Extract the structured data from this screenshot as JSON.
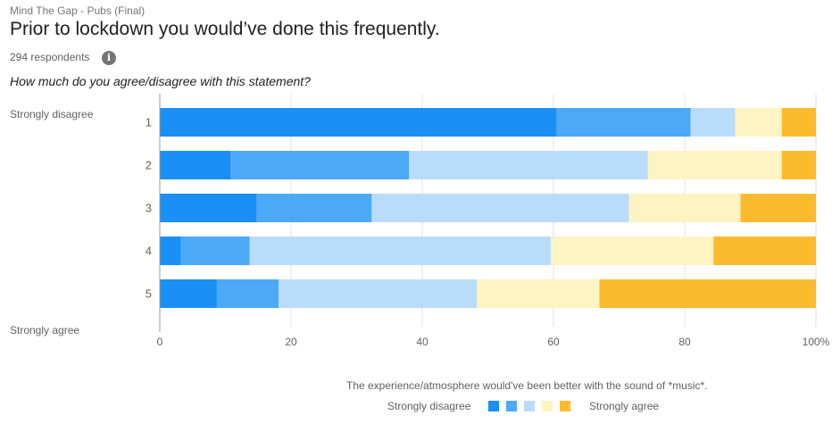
{
  "header": {
    "survey_name": "Mind The Gap - Pubs (Final)",
    "title": "Prior to lockdown you would’ve done this frequently.",
    "respondents": "294 respondents",
    "info_icon": "info-icon",
    "question": "How much do you agree/disagree with this statement?"
  },
  "chart_data": {
    "type": "bar",
    "orientation": "horizontal",
    "stacked": "percent",
    "categories": [
      "1",
      "2",
      "3",
      "4",
      "5"
    ],
    "series": [
      {
        "name": "1",
        "color": "#1a8ff5",
        "values": [
          60.5,
          10.8,
          14.8,
          3.2,
          8.7
        ]
      },
      {
        "name": "2",
        "color": "#4ca9f8",
        "values": [
          20.4,
          27.2,
          17.5,
          10.5,
          9.4
        ]
      },
      {
        "name": "3",
        "color": "#badcfb",
        "values": [
          6.8,
          36.4,
          39.2,
          45.9,
          30.2
        ]
      },
      {
        "name": "4",
        "color": "#fdf3c3",
        "values": [
          7.1,
          20.4,
          17.0,
          24.8,
          18.7
        ]
      },
      {
        "name": "5",
        "color": "#fcbb2f",
        "values": [
          5.2,
          5.2,
          11.5,
          15.6,
          33.0
        ]
      }
    ],
    "x_ticks": [
      "0",
      "20",
      "40",
      "60",
      "80",
      "100%"
    ],
    "xlim": [
      0,
      100
    ],
    "grid": true,
    "top_scale_label": "Strongly disagree",
    "bottom_scale_label": "Strongly agree",
    "caption": "The experience/atmosphere would've been better with the sound of *music*.",
    "legend": {
      "position": "bottom",
      "left_label": "Strongly disagree",
      "right_label": "Strongly agree"
    }
  }
}
